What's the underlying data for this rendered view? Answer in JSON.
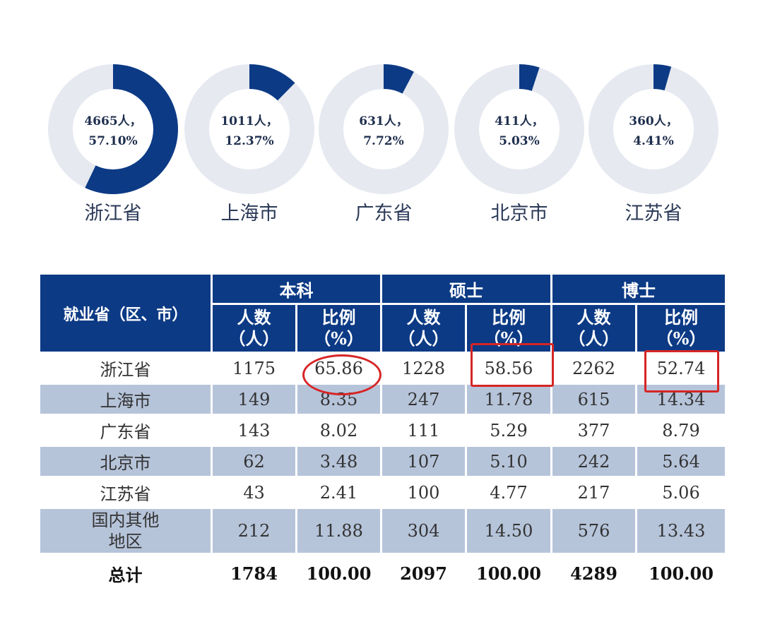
{
  "chart_data": [
    {
      "type": "pie",
      "style": "donut",
      "slices": [
        {
          "category": "浙江省",
          "value": 57.1,
          "text_line1": "4665人，",
          "text_line2": "57.10%"
        },
        {
          "category": "上海市",
          "value": 12.37,
          "text_line1": "1011人，",
          "text_line2": "12.37%"
        },
        {
          "category": "广东省",
          "value": 7.72,
          "text_line1": "631人，",
          "text_line2": "7.72%"
        },
        {
          "category": "北京市",
          "value": 5.03,
          "text_line1": "411人，",
          "text_line2": "5.03%"
        },
        {
          "category": "江苏省",
          "value": 4.41,
          "text_line1": "360人，",
          "text_line2": "4.41%"
        }
      ],
      "colors": {
        "filled": "#0c3a85",
        "track": "#e6e9f0"
      }
    },
    {
      "type": "table",
      "corner_header": "就业省（区、市）",
      "groups": [
        "本科",
        "硕士",
        "博士"
      ],
      "sub_headers": [
        {
          "line1": "人数",
          "line2": "（人）"
        },
        {
          "line1": "比例",
          "line2": "（%）"
        }
      ],
      "rows": [
        {
          "region": [
            "浙江省"
          ],
          "values": [
            "1175",
            "65.86",
            "1228",
            "58.56",
            "2262",
            "52.74"
          ]
        },
        {
          "region": [
            "上海市"
          ],
          "values": [
            "149",
            "8.35",
            "247",
            "11.78",
            "615",
            "14.34"
          ]
        },
        {
          "region": [
            "广东省"
          ],
          "values": [
            "143",
            "8.02",
            "111",
            "5.29",
            "377",
            "8.79"
          ]
        },
        {
          "region": [
            "北京市"
          ],
          "values": [
            "62",
            "3.48",
            "107",
            "5.10",
            "242",
            "5.64"
          ]
        },
        {
          "region": [
            "江苏省"
          ],
          "values": [
            "43",
            "2.41",
            "100",
            "4.77",
            "217",
            "5.06"
          ]
        },
        {
          "region": [
            "国内其他",
            "地区"
          ],
          "values": [
            "212",
            "11.88",
            "304",
            "14.50",
            "576",
            "13.43"
          ]
        }
      ],
      "total": {
        "label": "总计",
        "values": [
          "1784",
          "100.00",
          "2097",
          "100.00",
          "4289",
          "100.00"
        ]
      },
      "colors": {
        "header": "#0c3a85",
        "band": "#b6c4da",
        "annotation": "#d62525"
      },
      "annotations": [
        {
          "shape": "circle",
          "cell": "浙江省/本科/比例"
        },
        {
          "shape": "rectangle",
          "cell": "浙江省/硕士/比例"
        },
        {
          "shape": "rectangle",
          "cell": "浙江省/博士/比例"
        }
      ]
    }
  ]
}
